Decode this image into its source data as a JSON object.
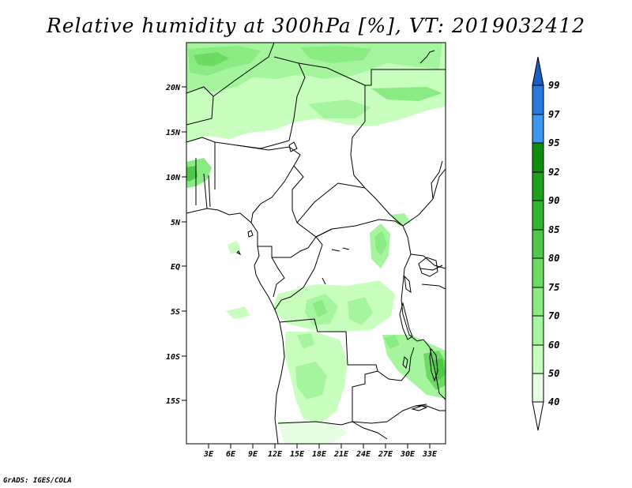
{
  "title": "Relative humidity at 300hPa [%], VT: 2019032412",
  "map": {
    "variable": "Relative humidity",
    "level": "300hPa",
    "units": "%",
    "valid_time": "2019032412",
    "lat_labels": [
      "20N",
      "15N",
      "10N",
      "5N",
      "EQ",
      "5S",
      "10S",
      "15S"
    ],
    "lon_labels": [
      "3E",
      "6E",
      "9E",
      "12E",
      "15E",
      "18E",
      "21E",
      "24E",
      "27E",
      "30E",
      "33E"
    ]
  },
  "colorbar": {
    "levels": [
      "40",
      "50",
      "60",
      "70",
      "75",
      "80",
      "85",
      "90",
      "92",
      "95",
      "97",
      "99"
    ],
    "colors": [
      "#ffffff",
      "#e6ffe2",
      "#c8ffbf",
      "#a4f59e",
      "#8aeb82",
      "#6dda64",
      "#4fc84a",
      "#35b431",
      "#1fa01c",
      "#0f8c0e",
      "#3d96f0",
      "#2779e0",
      "#1c5fc2"
    ]
  },
  "credit": "GrADS: IGES/COLA"
}
